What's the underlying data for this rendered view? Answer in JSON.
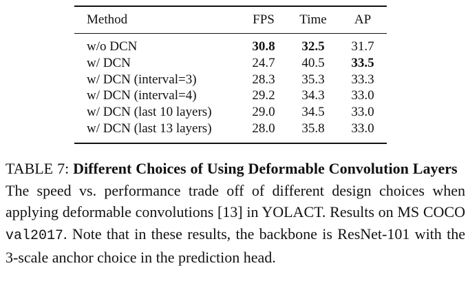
{
  "table": {
    "headers": [
      "Method",
      "FPS",
      "Time",
      "AP"
    ],
    "rows": [
      [
        "w/o DCN",
        "30.8",
        "32.5",
        "31.7"
      ],
      [
        "w/ DCN",
        "24.7",
        "40.5",
        "33.5"
      ],
      [
        "w/ DCN (interval=3)",
        "28.3",
        "35.3",
        "33.3"
      ],
      [
        "w/ DCN (interval=4)",
        "29.2",
        "34.3",
        "33.0"
      ],
      [
        "w/ DCN (last 10 layers)",
        "29.0",
        "34.5",
        "33.0"
      ],
      [
        "w/ DCN (last 13 layers)",
        "28.0",
        "35.8",
        "33.0"
      ]
    ],
    "bold": [
      [
        0,
        1
      ],
      [
        0,
        2
      ],
      [
        1,
        3
      ]
    ]
  },
  "caption": {
    "label": "TABLE 7:",
    "title": "Different Choices of Using Deformable Convolution Layers",
    "text_before": "The speed vs. performance trade off of different design choices when applying deformable convolutions [13] in YOLACT. Results on MS COCO",
    "code": "val2017",
    "text_after": ". Note that in these results, the backbone is ResNet-101 with the 3-scale anchor choice in the prediction head."
  }
}
